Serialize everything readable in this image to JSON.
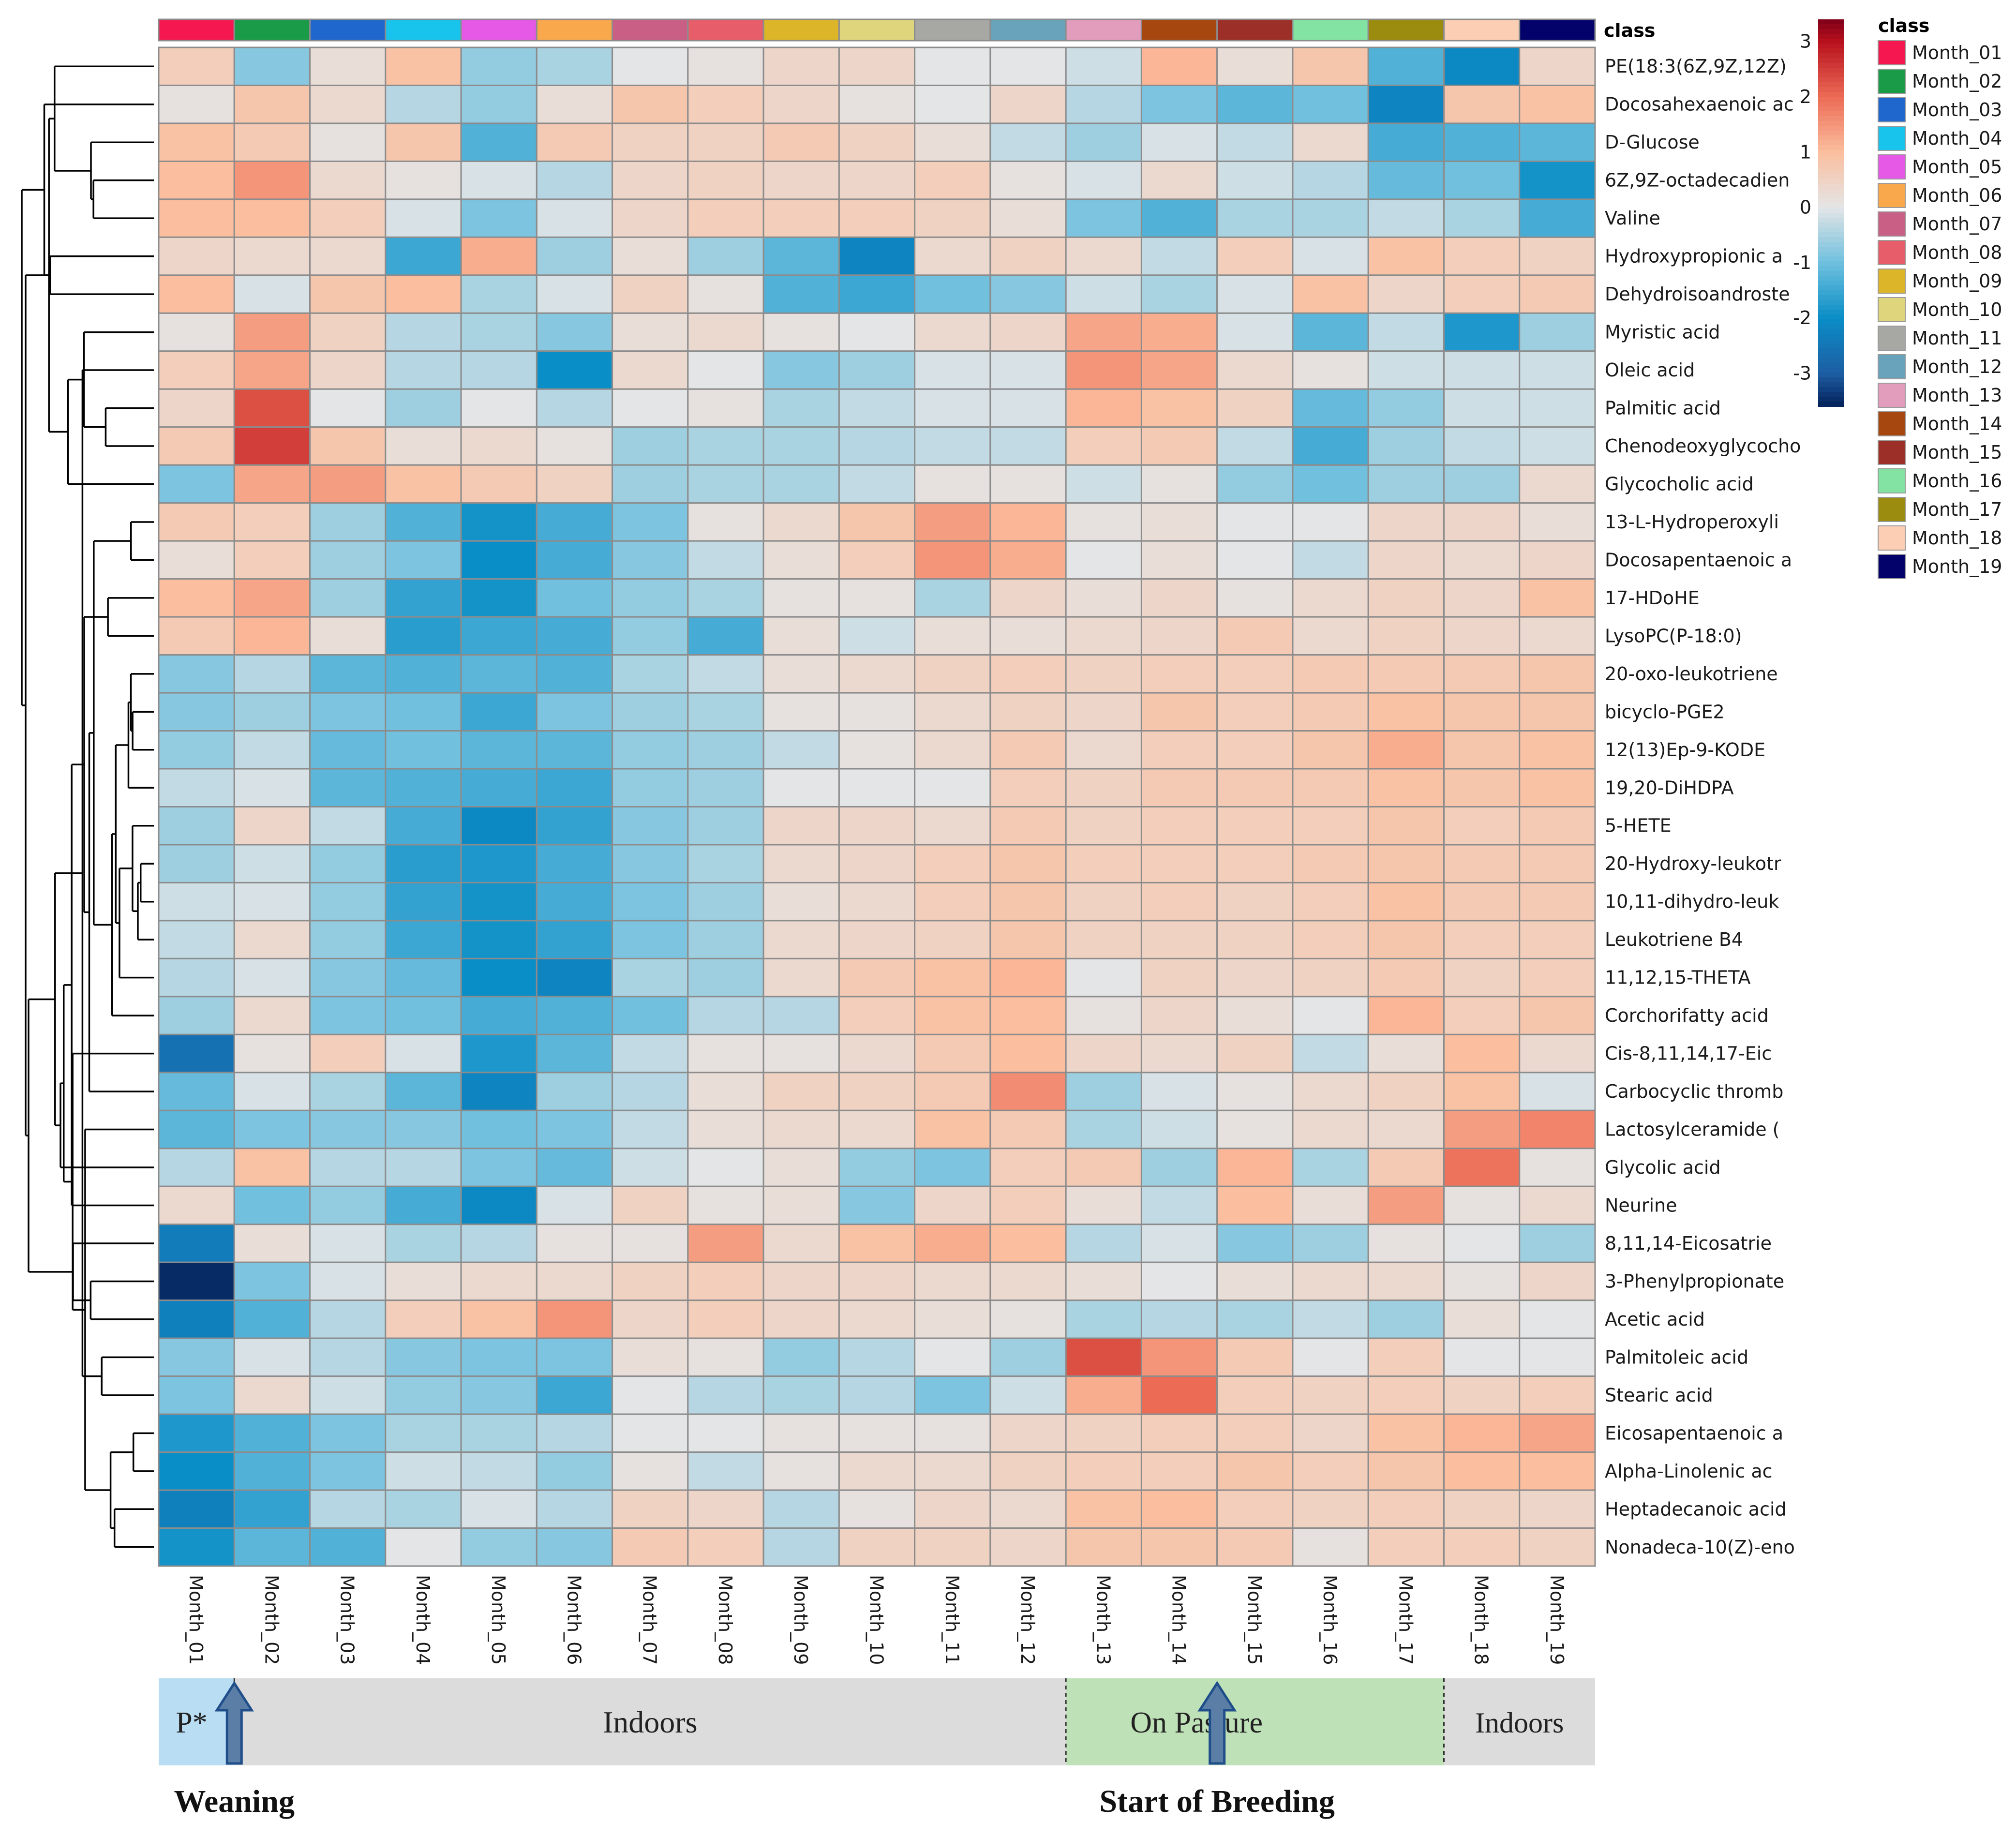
{
  "chart_data": {
    "type": "heatmap",
    "title": "",
    "column_annotation_label": "class",
    "legend_title": "class",
    "columns": [
      "Month_01",
      "Month_02",
      "Month_03",
      "Month_04",
      "Month_05",
      "Month_06",
      "Month_07",
      "Month_08",
      "Month_09",
      "Month_10",
      "Month_11",
      "Month_12",
      "Month_13",
      "Month_14",
      "Month_15",
      "Month_16",
      "Month_17",
      "Month_18",
      "Month_19"
    ],
    "class_colors": [
      "#f5174f",
      "#199b47",
      "#1f67cc",
      "#18c3ec",
      "#e658e6",
      "#f9a94c",
      "#ca5f86",
      "#e75d6a",
      "#dcb628",
      "#dfd57c",
      "#a7a7a4",
      "#68a3bb",
      "#e29cbc",
      "#a5470f",
      "#9c2f27",
      "#83e3a3",
      "#9b8c0f",
      "#fccfb4",
      "#02026a"
    ],
    "rows": [
      "PE(18:3(6Z,9Z,12Z)",
      "Docosahexaenoic ac",
      "D-Glucose",
      "6Z,9Z-octadecadien",
      "Valine",
      "Hydroxypropionic a",
      "Dehydroisoandroste",
      "Myristic acid",
      "Oleic acid",
      "Palmitic acid",
      "Chenodeoxyglycocho",
      "Glycocholic acid",
      "13-L-Hydroperoxyli",
      "Docosapentaenoic a",
      "17-HDoHE",
      "LysoPC(P-18:0)",
      "20-oxo-leukotriene",
      "bicyclo-PGE2",
      "12(13)Ep-9-KODE",
      "19,20-DiHDPA",
      "5-HETE",
      "20-Hydroxy-leukotr",
      "10,11-dihydro-leuk",
      "Leukotriene B4",
      "11,12,15-THETA",
      "Corchorifatty acid",
      "Cis-8,11,14,17-Eic",
      "Carbocyclic thromb",
      "Lactosylceramide (",
      "Glycolic acid",
      "Neurine",
      "8,11,14-Eicosatrie",
      "3-Phenylpropionate",
      "Acetic acid",
      "Palmitoleic acid",
      "Stearic acid",
      "Eicosapentaenoic a",
      "Alpha-Linolenic ac",
      "Heptadecanoic acid",
      "Nonadeca-10(Z)-eno"
    ],
    "values": [
      [
        0.6,
        -0.8,
        0.2,
        0.9,
        -0.7,
        -0.5,
        0.0,
        0.1,
        0.4,
        0.4,
        0.0,
        0.0,
        -0.2,
        1.1,
        0.2,
        0.8,
        -1.3,
        -2.1,
        0.4
      ],
      [
        0.1,
        0.8,
        0.3,
        -0.4,
        -0.7,
        0.2,
        0.8,
        0.6,
        0.4,
        0.1,
        0.0,
        0.4,
        -0.4,
        -0.9,
        -1.2,
        -1.0,
        -2.2,
        0.8,
        0.9
      ],
      [
        0.9,
        0.7,
        0.1,
        0.8,
        -1.3,
        0.7,
        0.5,
        0.5,
        0.7,
        0.5,
        0.2,
        -0.3,
        -0.6,
        -0.1,
        -0.3,
        0.3,
        -1.4,
        -1.3,
        -1.2
      ],
      [
        1.0,
        1.5,
        0.3,
        0.1,
        -0.1,
        -0.4,
        0.4,
        0.5,
        0.4,
        0.4,
        0.6,
        0.1,
        -0.1,
        0.3,
        -0.2,
        -0.4,
        -1.1,
        -1.0,
        -1.9
      ],
      [
        1.0,
        1.0,
        0.6,
        -0.1,
        -0.9,
        -0.1,
        0.4,
        0.6,
        0.6,
        0.6,
        0.5,
        0.2,
        -0.9,
        -1.3,
        -0.5,
        -0.5,
        -0.3,
        -0.5,
        -1.4
      ],
      [
        0.4,
        0.3,
        0.3,
        -1.5,
        1.2,
        -0.6,
        0.2,
        -0.6,
        -1.2,
        -2.2,
        0.3,
        0.5,
        0.3,
        -0.3,
        0.6,
        -0.1,
        0.9,
        0.6,
        0.5
      ],
      [
        1.0,
        -0.1,
        0.8,
        1.0,
        -0.5,
        -0.1,
        0.5,
        0.1,
        -1.3,
        -1.5,
        -1.0,
        -0.8,
        -0.2,
        -0.5,
        -0.1,
        0.9,
        0.4,
        0.6,
        0.7
      ],
      [
        0.1,
        1.4,
        0.5,
        -0.4,
        -0.5,
        -0.8,
        0.2,
        0.3,
        0.1,
        0.0,
        0.3,
        0.4,
        1.3,
        1.2,
        -0.1,
        -1.2,
        -0.3,
        -1.8,
        -0.6
      ],
      [
        0.6,
        1.3,
        0.4,
        -0.4,
        -0.4,
        -2.0,
        0.3,
        0.0,
        -0.8,
        -0.6,
        -0.1,
        -0.1,
        1.5,
        1.3,
        0.3,
        0.1,
        -0.2,
        -0.2,
        -0.2
      ],
      [
        0.4,
        2.3,
        0.0,
        -0.6,
        0.0,
        -0.4,
        0.0,
        0.1,
        -0.5,
        -0.3,
        -0.1,
        -0.1,
        1.1,
        0.9,
        0.5,
        -1.1,
        -0.7,
        -0.2,
        -0.2
      ],
      [
        0.7,
        2.5,
        0.8,
        0.2,
        0.3,
        0.1,
        -0.6,
        -0.5,
        -0.5,
        -0.4,
        -0.3,
        -0.3,
        0.6,
        0.7,
        -0.3,
        -1.4,
        -0.6,
        -0.3,
        -0.2
      ],
      [
        -0.9,
        1.3,
        1.4,
        0.9,
        0.7,
        0.5,
        -0.6,
        -0.5,
        -0.5,
        -0.3,
        0.1,
        0.1,
        -0.2,
        0.1,
        -0.7,
        -1.0,
        -0.6,
        -0.6,
        0.3
      ],
      [
        0.7,
        0.6,
        -0.6,
        -1.3,
        -1.9,
        -1.4,
        -0.9,
        0.1,
        0.3,
        0.8,
        1.4,
        1.1,
        0.1,
        0.2,
        0.0,
        0.0,
        0.4,
        0.4,
        0.2
      ],
      [
        0.2,
        0.6,
        -0.6,
        -0.9,
        -2.0,
        -1.4,
        -0.8,
        -0.3,
        0.2,
        0.6,
        1.5,
        1.2,
        0.0,
        0.2,
        0.0,
        -0.3,
        0.4,
        0.3,
        0.4
      ],
      [
        1.0,
        1.3,
        -0.6,
        -1.6,
        -1.9,
        -1.0,
        -0.7,
        -0.5,
        0.1,
        0.1,
        -0.5,
        0.4,
        0.2,
        0.4,
        0.1,
        0.3,
        0.5,
        0.4,
        0.9
      ],
      [
        0.7,
        1.1,
        0.2,
        -1.7,
        -1.5,
        -1.4,
        -0.7,
        -1.4,
        0.2,
        -0.2,
        0.2,
        0.2,
        0.3,
        0.4,
        0.7,
        0.3,
        0.5,
        0.4,
        0.3
      ],
      [
        -0.8,
        -0.4,
        -1.2,
        -1.3,
        -1.2,
        -1.3,
        -0.5,
        -0.3,
        0.2,
        0.3,
        0.5,
        0.6,
        0.5,
        0.6,
        0.6,
        0.7,
        0.7,
        0.7,
        0.8
      ],
      [
        -0.8,
        -0.6,
        -0.9,
        -1.0,
        -1.5,
        -0.9,
        -0.6,
        -0.5,
        0.1,
        0.1,
        0.3,
        0.5,
        0.4,
        0.8,
        0.6,
        0.7,
        0.9,
        0.8,
        0.8
      ],
      [
        -0.7,
        -0.3,
        -1.1,
        -1.0,
        -1.2,
        -1.2,
        -0.7,
        -0.6,
        -0.3,
        0.1,
        0.3,
        0.7,
        0.3,
        0.6,
        0.6,
        0.8,
        1.2,
        0.8,
        0.9
      ],
      [
        -0.3,
        -0.1,
        -1.2,
        -1.3,
        -1.4,
        -1.5,
        -0.7,
        -0.6,
        0.0,
        0.0,
        0.0,
        0.6,
        0.5,
        0.7,
        0.7,
        0.7,
        0.9,
        0.8,
        0.9
      ],
      [
        -0.6,
        0.4,
        -0.3,
        -1.4,
        -2.1,
        -1.6,
        -0.8,
        -0.6,
        0.4,
        0.4,
        0.3,
        0.7,
        0.5,
        0.6,
        0.6,
        0.6,
        0.8,
        0.6,
        0.7
      ],
      [
        -0.6,
        -0.2,
        -0.7,
        -1.7,
        -1.8,
        -1.4,
        -0.8,
        -0.5,
        0.3,
        0.4,
        0.6,
        0.8,
        0.6,
        0.6,
        0.6,
        0.7,
        0.8,
        0.7,
        0.7
      ],
      [
        -0.2,
        -0.1,
        -0.7,
        -1.6,
        -1.9,
        -1.4,
        -0.9,
        -0.6,
        0.2,
        0.3,
        0.6,
        0.8,
        0.5,
        0.6,
        0.5,
        0.6,
        0.9,
        0.7,
        0.7
      ],
      [
        -0.3,
        0.3,
        -0.7,
        -1.5,
        -1.9,
        -1.6,
        -0.9,
        -0.6,
        0.3,
        0.4,
        0.5,
        0.8,
        0.5,
        0.5,
        0.5,
        0.6,
        0.8,
        0.6,
        0.6
      ],
      [
        -0.4,
        -0.1,
        -0.8,
        -1.1,
        -2.0,
        -2.2,
        -0.5,
        -0.6,
        0.3,
        0.7,
        0.9,
        1.1,
        0.0,
        0.5,
        0.4,
        0.5,
        0.7,
        0.5,
        0.6
      ],
      [
        -0.6,
        0.3,
        -0.9,
        -1.0,
        -1.4,
        -1.3,
        -1.0,
        -0.4,
        -0.4,
        0.6,
        0.9,
        1.0,
        0.1,
        0.4,
        0.2,
        0.0,
        1.1,
        0.6,
        0.8
      ],
      [
        -2.6,
        0.1,
        0.6,
        -0.1,
        -1.8,
        -1.2,
        -0.3,
        0.1,
        0.1,
        0.3,
        0.7,
        1.0,
        0.4,
        0.3,
        0.5,
        -0.3,
        0.2,
        1.0,
        0.3
      ],
      [
        -1.1,
        -0.1,
        -0.5,
        -1.2,
        -2.2,
        -0.6,
        -0.4,
        0.2,
        0.5,
        0.5,
        0.7,
        1.6,
        -0.6,
        -0.1,
        0.1,
        0.3,
        0.5,
        0.9,
        -0.1
      ],
      [
        -1.2,
        -0.9,
        -0.8,
        -0.8,
        -1.0,
        -0.9,
        -0.3,
        0.2,
        0.3,
        0.3,
        0.9,
        0.7,
        -0.5,
        -0.2,
        0.1,
        0.3,
        0.3,
        1.4,
        1.7
      ],
      [
        -0.4,
        0.9,
        -0.4,
        -0.4,
        -0.9,
        -1.1,
        -0.2,
        0.0,
        0.2,
        -0.7,
        -0.9,
        0.6,
        0.7,
        -0.6,
        1.1,
        -0.5,
        0.7,
        1.9,
        0.1
      ],
      [
        0.3,
        -1.0,
        -0.7,
        -1.4,
        -2.1,
        -0.1,
        0.5,
        0.1,
        0.2,
        -0.8,
        0.4,
        0.6,
        0.2,
        -0.3,
        1.0,
        0.2,
        1.4,
        0.1,
        0.3
      ],
      [
        -2.4,
        0.2,
        -0.1,
        -0.5,
        -0.4,
        0.1,
        0.1,
        1.4,
        0.3,
        0.9,
        1.2,
        1.0,
        -0.4,
        -0.1,
        -0.8,
        -0.6,
        0.1,
        0.0,
        -0.6
      ],
      [
        -3.5,
        -0.9,
        -0.1,
        0.2,
        0.3,
        0.3,
        0.5,
        0.6,
        0.4,
        0.4,
        0.3,
        0.3,
        0.2,
        0.0,
        0.2,
        0.3,
        0.3,
        0.1,
        0.4
      ],
      [
        -2.3,
        -1.3,
        -0.4,
        0.6,
        0.9,
        1.5,
        0.4,
        0.6,
        0.4,
        0.3,
        0.2,
        0.1,
        -0.5,
        -0.4,
        -0.5,
        -0.3,
        -0.6,
        0.2,
        0.0
      ],
      [
        -0.8,
        -0.1,
        -0.4,
        -0.8,
        -0.9,
        -0.9,
        0.2,
        0.1,
        -0.7,
        -0.4,
        0.0,
        -0.6,
        2.3,
        1.5,
        0.7,
        0.0,
        0.6,
        0.0,
        0.0
      ],
      [
        -0.9,
        0.3,
        -0.2,
        -0.7,
        -0.8,
        -1.5,
        0.0,
        -0.4,
        -0.5,
        -0.4,
        -0.9,
        -0.2,
        1.2,
        2.0,
        0.6,
        0.5,
        0.6,
        0.5,
        0.6
      ],
      [
        -1.8,
        -1.3,
        -0.9,
        -0.5,
        -0.5,
        -0.4,
        0.0,
        0.0,
        0.1,
        0.1,
        0.1,
        0.4,
        0.5,
        0.6,
        0.6,
        0.4,
        0.9,
        1.1,
        1.3
      ],
      [
        -2.0,
        -1.3,
        -0.9,
        -0.2,
        -0.3,
        -0.7,
        0.1,
        -0.3,
        0.1,
        0.3,
        0.3,
        0.5,
        0.6,
        0.6,
        0.8,
        0.6,
        0.8,
        1.0,
        1.0
      ],
      [
        -2.3,
        -1.6,
        -0.4,
        -0.5,
        -0.1,
        -0.4,
        0.5,
        0.4,
        -0.4,
        0.1,
        0.4,
        0.3,
        0.9,
        1.0,
        0.6,
        0.5,
        0.6,
        0.5,
        0.4
      ],
      [
        -1.9,
        -1.2,
        -1.3,
        0.0,
        -0.7,
        -0.8,
        0.7,
        0.6,
        -0.4,
        0.5,
        0.5,
        0.4,
        0.8,
        0.8,
        0.7,
        0.1,
        0.6,
        0.6,
        0.5
      ]
    ],
    "color_scale": {
      "stops": [
        -3.6,
        -3,
        -2,
        -1,
        0,
        1,
        2,
        3,
        3.4
      ],
      "colors": [
        "#032159",
        "#1d5ea3",
        "#0a8ec7",
        "#70c0de",
        "#e4e5e6",
        "#fbbe9e",
        "#ec6b55",
        "#b8101d",
        "#7c0018"
      ],
      "ticks": [
        3,
        2,
        1,
        0,
        -1,
        -2,
        -3
      ]
    },
    "row_dendrogram": true,
    "timeline": {
      "segments": [
        {
          "label": "P*",
          "start": 0,
          "end": 1,
          "color": "#b9ddf2"
        },
        {
          "label": "Indoors",
          "start": 1,
          "end": 12,
          "color": "#dcdcdc"
        },
        {
          "label": "On Pasture",
          "start": 12,
          "end": 17,
          "color": "#bfe1b8"
        },
        {
          "label": "Indoors",
          "start": 17,
          "end": 19,
          "color": "#dcdcdc"
        }
      ],
      "arrows": [
        {
          "label": "Weaning",
          "column": 1
        },
        {
          "label": "Start of Breeding",
          "column": 14
        }
      ]
    }
  }
}
